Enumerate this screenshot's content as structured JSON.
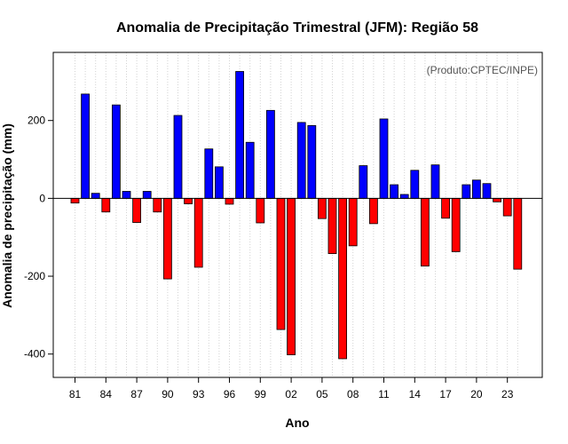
{
  "chart_data": {
    "type": "bar",
    "title": "Anomalia de Precipitação Trimestral (JFM): Região 58",
    "xlabel": "Ano",
    "ylabel": "Anomalia de precipitação (mm)",
    "annotation": "(Produto:CPTEC/INPE)",
    "ylim": [
      -460,
      375
    ],
    "yticks": [
      -400,
      -200,
      0,
      200
    ],
    "ytick_labels": [
      "-400",
      "-200",
      "0",
      "200"
    ],
    "xtick_labels": [
      "81",
      "84",
      "87",
      "90",
      "93",
      "96",
      "99",
      "02",
      "05",
      "08",
      "11",
      "14",
      "17",
      "20",
      "23"
    ],
    "grid": true,
    "positive_color": "#0000ff",
    "negative_color": "#ff0000",
    "categories": [
      "1981",
      "1982",
      "1983",
      "1984",
      "1985",
      "1986",
      "1987",
      "1988",
      "1989",
      "1990",
      "1991",
      "1992",
      "1993",
      "1994",
      "1995",
      "1996",
      "1997",
      "1998",
      "1999",
      "2000",
      "2001",
      "2002",
      "2003",
      "2004",
      "2005",
      "2006",
      "2007",
      "2008",
      "2009",
      "2010",
      "2011",
      "2012",
      "2013",
      "2014",
      "2015",
      "2016",
      "2017",
      "2018",
      "2019",
      "2020",
      "2021",
      "2022",
      "2023",
      "2024"
    ],
    "values": [
      -12,
      268,
      13,
      -35,
      240,
      18,
      -62,
      18,
      -35,
      -207,
      213,
      -14,
      -177,
      127,
      81,
      -15,
      326,
      144,
      -63,
      226,
      -337,
      -402,
      195,
      187,
      -52,
      -142,
      -412,
      -122,
      84,
      -65,
      204,
      35,
      10,
      72,
      -174,
      86,
      -51,
      -137,
      35,
      47,
      38,
      -9,
      -45,
      -182
    ]
  }
}
